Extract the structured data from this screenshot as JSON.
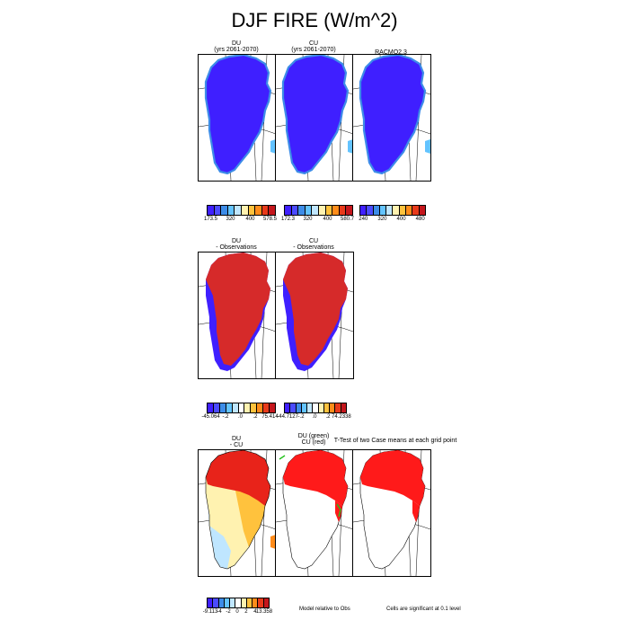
{
  "title": "DJF FIRE (W/m^2)",
  "chart_data": {
    "type": "heatmap",
    "title": "DJF FIRE (W/m^2)",
    "panels": [
      {
        "id": "du",
        "title_lines": [
          "DU",
          "(yrs 2061-2070)"
        ],
        "field": "values",
        "pattern": "blue_land_light_edges"
      },
      {
        "id": "cu",
        "title_lines": [
          "CU",
          "(yrs 2061-2070)"
        ],
        "field": "values",
        "pattern": "blue_land_light_edges"
      },
      {
        "id": "racmo",
        "title_lines": [
          "RACMO2.3"
        ],
        "field": "values",
        "pattern": "blue_land_light_edges"
      },
      {
        "id": "du_obs",
        "title_lines": [
          "DU",
          "- Observations"
        ],
        "field": "difference",
        "pattern": "red_with_blue_coast"
      },
      {
        "id": "cu_obs",
        "title_lines": [
          "CU",
          "- Observations"
        ],
        "field": "difference",
        "pattern": "red_with_blue_coast"
      },
      {
        "id": "du_cu",
        "title_lines": [
          "DU",
          "- CU"
        ],
        "field": "difference",
        "pattern": "red_north_yellow_south"
      },
      {
        "id": "model_rel",
        "title_lines": [
          "DU (green)",
          "CU (red)"
        ],
        "field": "significance",
        "pattern": "red_north_green_markers"
      },
      {
        "id": "ttest",
        "title_lines": [
          "T-Test of two Case means at each grid point"
        ],
        "field": "significance",
        "pattern": "red_north_only"
      }
    ],
    "colorbars": [
      {
        "id": "cb_du",
        "colors": [
          "#3f1fff",
          "#4b4bff",
          "#3d8ce8",
          "#63c3ff",
          "#bfe6ff",
          "#fff2b0",
          "#ffc23d",
          "#ff8c1a",
          "#e83a1a",
          "#c4161c"
        ],
        "labels": [
          "173.5",
          "320",
          "400",
          "578.5"
        ]
      },
      {
        "id": "cb_cu",
        "colors": [
          "#3f1fff",
          "#4b4bff",
          "#3d8ce8",
          "#63c3ff",
          "#bfe6ff",
          "#fff2b0",
          "#ffc23d",
          "#ff8c1a",
          "#e83a1a",
          "#c4161c"
        ],
        "labels": [
          "172.3",
          "320",
          "400",
          "580.7"
        ]
      },
      {
        "id": "cb_racmo",
        "colors": [
          "#3f1fff",
          "#4b4bff",
          "#3d8ce8",
          "#63c3ff",
          "#bfe6ff",
          "#fff2b0",
          "#ffc23d",
          "#ff8c1a",
          "#e83a1a",
          "#c4161c"
        ],
        "labels": [
          "240",
          "320",
          "400",
          "480"
        ]
      },
      {
        "id": "cb_duobs",
        "colors": [
          "#3f1fff",
          "#4b4bff",
          "#3d8ce8",
          "#63c3ff",
          "#bfe6ff",
          "#ffffff",
          "#fff2b0",
          "#ffc23d",
          "#ff8c1a",
          "#e83a1a",
          "#c4161c"
        ],
        "labels": [
          "-45.064",
          "-.2",
          ".0",
          ".2",
          "75.414"
        ]
      },
      {
        "id": "cb_cuobs",
        "colors": [
          "#3f1fff",
          "#4b4bff",
          "#3d8ce8",
          "#63c3ff",
          "#bfe6ff",
          "#ffffff",
          "#fff2b0",
          "#ffc23d",
          "#ff8c1a",
          "#e83a1a",
          "#c4161c"
        ],
        "labels": [
          "-44.7127",
          "-.2",
          ".0",
          ".2",
          "74.2338"
        ]
      },
      {
        "id": "cb_ducu",
        "colors": [
          "#3f1fff",
          "#4b4bff",
          "#3d8ce8",
          "#63c3ff",
          "#bfe6ff",
          "#ffffff",
          "#fff2b0",
          "#ffc23d",
          "#ff8c1a",
          "#e83a1a",
          "#c4161c"
        ],
        "labels": [
          "-9.113",
          "-4",
          "-2",
          "0",
          "2",
          "4",
          "13.358"
        ]
      }
    ],
    "notes": [
      "Model relative to Obs",
      "Cells are significant at 0.1 level"
    ]
  }
}
